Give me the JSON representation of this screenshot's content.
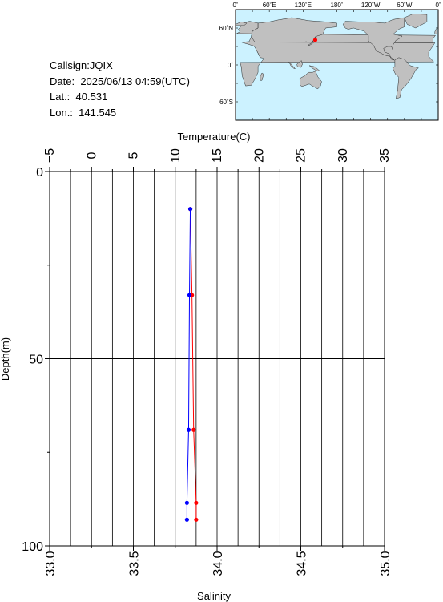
{
  "station": {
    "callsign_label": "Callsign:",
    "callsign": "JQIX",
    "date_label": "Date:",
    "date": "2025/06/13 04:59(UTC)",
    "lat_label": "Lat.:",
    "lat": "40.531",
    "lon_label": "Lon.:",
    "lon": "141.545"
  },
  "map": {
    "lon_ticks": [
      "0˚",
      "60˚E",
      "120˚E",
      "180˚",
      "120˚W",
      "60˚W",
      "0˚"
    ],
    "lat_ticks": [
      "60˚N",
      "0˚",
      "60˚S"
    ],
    "marker": {
      "lon": 141.545,
      "lat": 40.531
    },
    "ocean_color": "#ccf2ff",
    "land_color": "#c0c0c0",
    "marker_color": "#ff0000"
  },
  "chart_data": {
    "type": "line",
    "ylabel": "Depth(m)",
    "y_ticks": [
      "0",
      "50",
      "100"
    ],
    "ylim": [
      0,
      100
    ],
    "y_reversed": true,
    "top_axis": {
      "label": "Temperature(C)",
      "ticks": [
        "−5",
        "0",
        "5",
        "10",
        "15",
        "20",
        "25",
        "30",
        "35"
      ],
      "lim": [
        -5,
        35
      ]
    },
    "bottom_axis": {
      "label": "Salinity",
      "ticks": [
        "33.0",
        "33.5",
        "34.0",
        "34.5",
        "35.0"
      ],
      "lim": [
        33.0,
        35.0
      ]
    },
    "grid": true,
    "series": [
      {
        "color": "#ff0000",
        "axis": "top",
        "points": [
          [
            11.8,
            10
          ],
          [
            12.0,
            33
          ],
          [
            12.2,
            69
          ],
          [
            12.5,
            88.5
          ],
          [
            12.5,
            93
          ]
        ]
      },
      {
        "color": "#0000ff",
        "axis": "bottom",
        "points": [
          [
            33.84,
            10
          ],
          [
            33.835,
            33
          ],
          [
            33.83,
            69
          ],
          [
            33.82,
            88.5
          ],
          [
            33.82,
            93
          ]
        ]
      }
    ]
  }
}
